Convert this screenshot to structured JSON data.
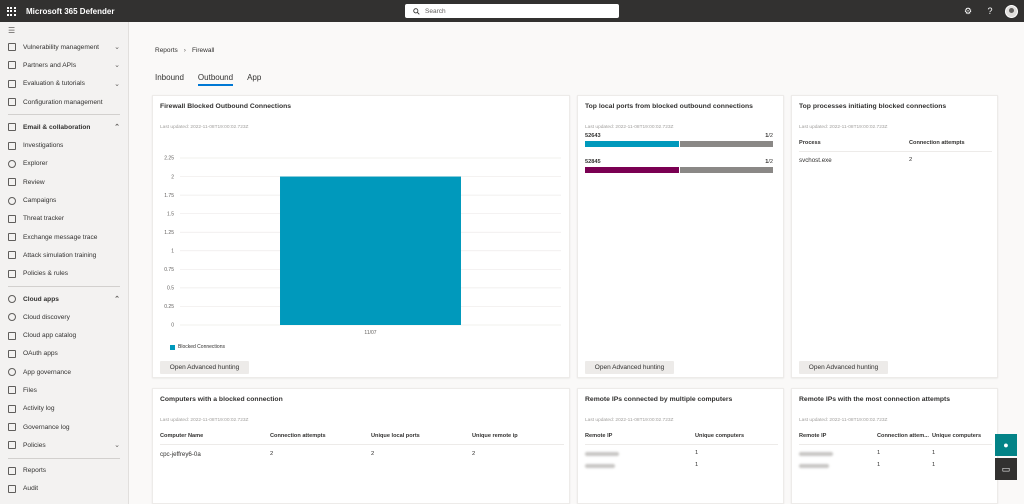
{
  "app": {
    "title": "Microsoft 365 Defender"
  },
  "search": {
    "placeholder": "Search"
  },
  "sidebar": {
    "items": [
      {
        "label": "Vulnerability management",
        "chev": "v"
      },
      {
        "label": "Partners and APIs",
        "chev": "v"
      },
      {
        "label": "Evaluation & tutorials",
        "chev": "v"
      },
      {
        "label": "Configuration management",
        "chev": ""
      }
    ],
    "email_section": "Email & collaboration",
    "email_items": [
      "Investigations",
      "Explorer",
      "Review",
      "Campaigns",
      "Threat tracker",
      "Exchange message trace",
      "Attack simulation training",
      "Policies & rules"
    ],
    "cloud_section": "Cloud apps",
    "cloud_items": [
      "Cloud discovery",
      "Cloud app catalog",
      "OAuth apps",
      "App governance",
      "Files",
      "Activity log",
      "Governance log",
      "Policies"
    ],
    "bottom_items": [
      "Reports",
      "Audit"
    ]
  },
  "breadcrumb": {
    "root": "Reports",
    "current": "Firewall"
  },
  "tabs": [
    "Inbound",
    "Outbound",
    "App"
  ],
  "cards": {
    "blocked_outbound": {
      "title": "Firewall Blocked Outbound Connections",
      "updated": "Last updated: 2022-11-08T19:00:02.723Z",
      "button": "Open Advanced hunting"
    },
    "top_ports": {
      "title": "Top local ports from blocked outbound connections",
      "updated": "Last updated: 2022-11-08T19:00:02.723Z",
      "button": "Open Advanced hunting",
      "rows": [
        {
          "port": "52643",
          "count": "1",
          "total": "/2",
          "fraction": 0.5,
          "color": "#0099bc"
        },
        {
          "port": "52845",
          "count": "1",
          "total": "/2",
          "fraction": 0.5,
          "color": "#7a0052"
        }
      ]
    },
    "top_processes": {
      "title": "Top processes initiating blocked connections",
      "updated": "Last updated: 2022-11-08T19:00:02.723Z",
      "button": "Open Advanced hunting",
      "headers": [
        "Process",
        "Connection attempts"
      ],
      "rows": [
        [
          "svchost.exe",
          "2"
        ]
      ]
    },
    "computers": {
      "title": "Computers with a blocked connection",
      "updated": "Last updated: 2022-11-08T19:00:02.723Z",
      "headers": [
        "Computer Name",
        "Connection attempts",
        "Unique local ports",
        "Unique remote ip"
      ],
      "rows": [
        [
          "cpc-jeffrey6-0a",
          "2",
          "2",
          "2"
        ]
      ]
    },
    "remote_multi": {
      "title": "Remote IPs connected by multiple computers",
      "updated": "Last updated: 2022-11-08T19:00:02.723Z",
      "headers": [
        "Remote IP",
        "Unique computers"
      ],
      "rows": [
        [
          "1"
        ],
        [
          "1"
        ]
      ]
    },
    "remote_most": {
      "title": "Remote IPs with the most connection attempts",
      "updated": "Last updated: 2022-11-08T19:00:02.723Z",
      "headers": [
        "Remote IP",
        "Connection attem...",
        "Unique computers"
      ],
      "rows": [
        [
          "1",
          "1"
        ],
        [
          "1",
          "1"
        ]
      ]
    }
  },
  "chart_data": {
    "type": "bar",
    "categories": [
      "11/07"
    ],
    "series": [
      {
        "name": "Blocked Connections",
        "values": [
          2
        ],
        "color": "#0099bc"
      }
    ],
    "yticks": [
      "0",
      "0.25",
      "0.5",
      "0.75",
      "1",
      "1.25",
      "1.5",
      "1.75",
      "2",
      "2.25"
    ],
    "ylim": [
      0,
      2.25
    ],
    "grid": true,
    "legend": "bottom-left"
  },
  "colors": {
    "accent": "#0078d4",
    "topbar": "#323130",
    "teal": "#038387",
    "dark": "#323130"
  }
}
